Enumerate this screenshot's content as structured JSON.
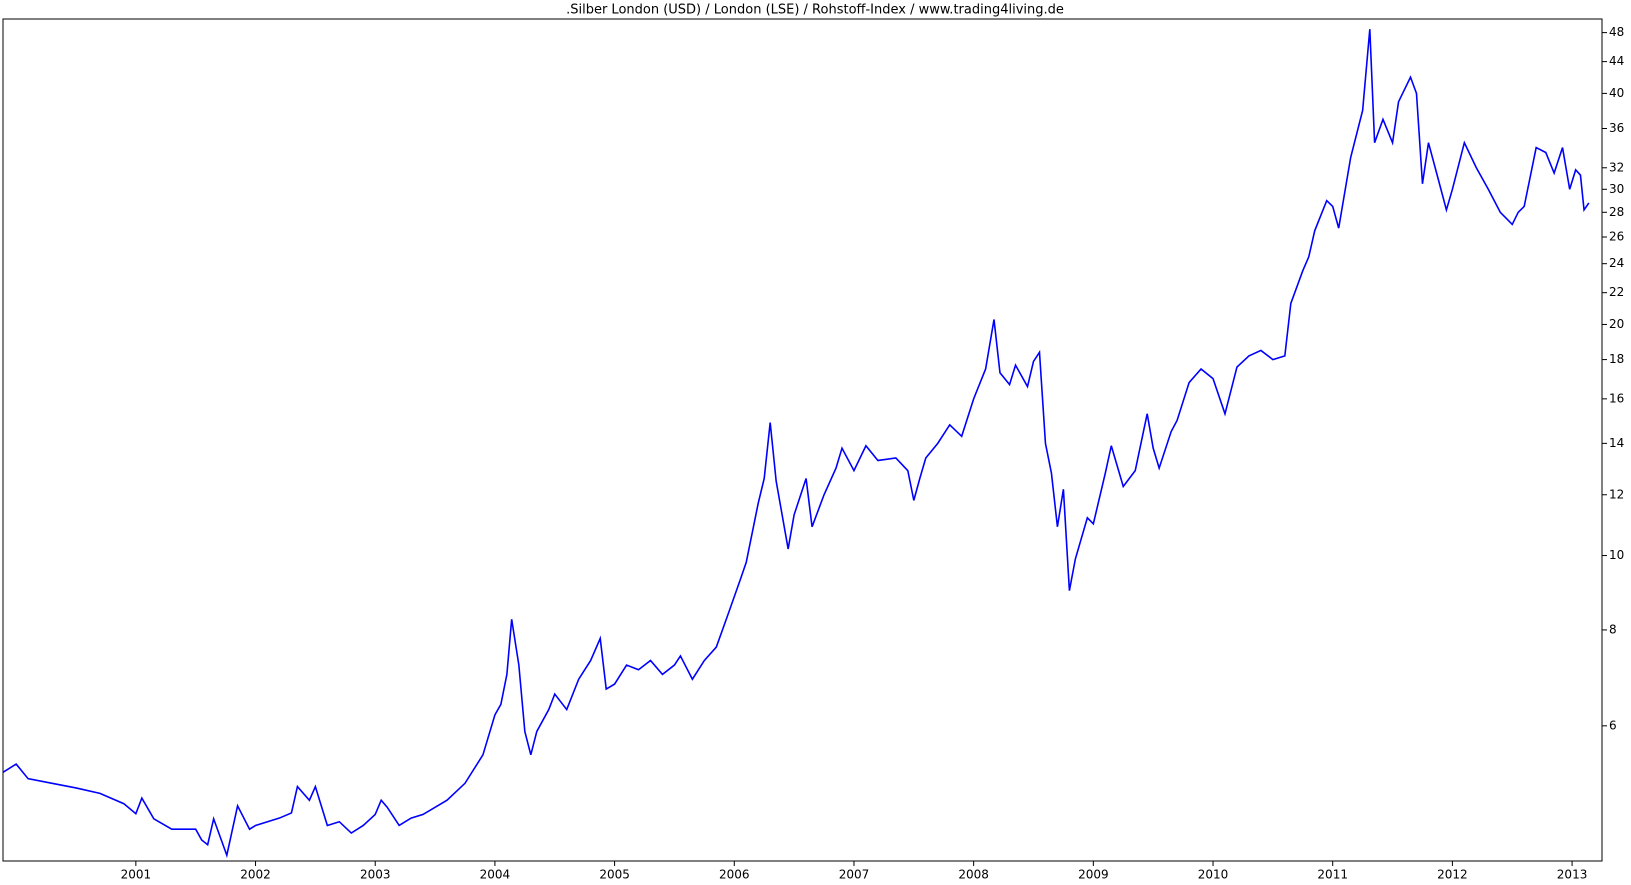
{
  "chart_data": {
    "type": "line",
    "title": ".Silber London (USD) / London (LSE) / Rohstoff-Index / www.trading4living.de",
    "x": [
      1999.89,
      2000.0,
      2000.1,
      2000.3,
      2000.5,
      2000.7,
      2000.9,
      2001.0,
      2001.05,
      2001.15,
      2001.3,
      2001.5,
      2001.55,
      2001.6,
      2001.65,
      2001.76,
      2001.85,
      2001.95,
      2002.0,
      2002.1,
      2002.2,
      2002.3,
      2002.35,
      2002.45,
      2002.5,
      2002.6,
      2002.7,
      2002.8,
      2002.9,
      2003.0,
      2003.05,
      2003.1,
      2003.2,
      2003.3,
      2003.4,
      2003.6,
      2003.75,
      2003.9,
      2004.0,
      2004.05,
      2004.1,
      2004.14,
      2004.2,
      2004.25,
      2004.3,
      2004.35,
      2004.45,
      2004.5,
      2004.6,
      2004.7,
      2004.8,
      2004.88,
      2004.93,
      2005.0,
      2005.1,
      2005.2,
      2005.3,
      2005.4,
      2005.5,
      2005.55,
      2005.65,
      2005.75,
      2005.85,
      2005.95,
      2006.05,
      2006.1,
      2006.2,
      2006.25,
      2006.3,
      2006.35,
      2006.45,
      2006.5,
      2006.6,
      2006.65,
      2006.75,
      2006.85,
      2006.9,
      2007.0,
      2007.1,
      2007.2,
      2007.35,
      2007.45,
      2007.5,
      2007.55,
      2007.6,
      2007.7,
      2007.8,
      2007.9,
      2008.0,
      2008.1,
      2008.17,
      2008.22,
      2008.3,
      2008.35,
      2008.45,
      2008.5,
      2008.55,
      2008.6,
      2008.65,
      2008.7,
      2008.75,
      2008.8,
      2008.85,
      2008.95,
      2009.0,
      2009.1,
      2009.15,
      2009.25,
      2009.35,
      2009.45,
      2009.5,
      2009.55,
      2009.65,
      2009.7,
      2009.8,
      2009.9,
      2010.0,
      2010.1,
      2010.2,
      2010.3,
      2010.4,
      2010.5,
      2010.6,
      2010.65,
      2010.75,
      2010.8,
      2010.85,
      2010.95,
      2011.0,
      2011.05,
      2011.15,
      2011.25,
      2011.31,
      2011.35,
      2011.42,
      2011.5,
      2011.55,
      2011.65,
      2011.7,
      2011.75,
      2011.8,
      2011.88,
      2011.95,
      2012.0,
      2012.1,
      2012.2,
      2012.3,
      2012.4,
      2012.45,
      2012.5,
      2012.55,
      2012.6,
      2012.7,
      2012.78,
      2012.85,
      2012.92,
      2012.98,
      2013.03,
      2013.07,
      2013.1,
      2013.14
    ],
    "values": [
      5.22,
      5.35,
      5.12,
      5.05,
      4.98,
      4.9,
      4.75,
      4.61,
      4.83,
      4.54,
      4.4,
      4.4,
      4.26,
      4.2,
      4.54,
      4.07,
      4.72,
      4.4,
      4.45,
      4.5,
      4.55,
      4.62,
      5.0,
      4.8,
      5.0,
      4.45,
      4.5,
      4.35,
      4.45,
      4.6,
      4.8,
      4.7,
      4.45,
      4.55,
      4.6,
      4.8,
      5.05,
      5.5,
      6.2,
      6.4,
      7.0,
      8.26,
      7.2,
      5.9,
      5.5,
      5.9,
      6.3,
      6.6,
      6.3,
      6.9,
      7.3,
      7.8,
      6.7,
      6.8,
      7.2,
      7.1,
      7.3,
      7.0,
      7.2,
      7.4,
      6.9,
      7.3,
      7.6,
      8.4,
      9.3,
      9.8,
      11.7,
      12.6,
      14.9,
      12.5,
      10.2,
      11.3,
      12.6,
      10.9,
      12.0,
      13.0,
      13.8,
      12.9,
      13.9,
      13.3,
      13.4,
      12.9,
      11.8,
      12.6,
      13.4,
      14.0,
      14.8,
      14.3,
      16.0,
      17.5,
      20.3,
      17.3,
      16.7,
      17.7,
      16.6,
      17.9,
      18.4,
      14.0,
      12.8,
      10.9,
      12.2,
      9.0,
      9.9,
      11.2,
      11.0,
      12.8,
      13.9,
      12.3,
      12.9,
      15.3,
      13.8,
      13.0,
      14.5,
      15.0,
      16.8,
      17.5,
      17.0,
      15.3,
      17.6,
      18.2,
      18.5,
      18.0,
      18.2,
      21.3,
      23.5,
      24.5,
      26.5,
      29.0,
      28.5,
      26.7,
      33.0,
      38.0,
      48.5,
      34.5,
      37.0,
      34.5,
      39.0,
      42.0,
      40.0,
      30.5,
      34.5,
      31.0,
      28.2,
      30.0,
      34.5,
      32.0,
      30.0,
      28.0,
      27.5,
      27.0,
      28.0,
      28.5,
      34.0,
      33.5,
      31.5,
      34.0,
      30.0,
      31.8,
      31.3,
      28.2,
      28.8
    ],
    "color": "#0000ff",
    "xlim": [
      1999.89,
      2013.25
    ],
    "xticks": [
      2001,
      2002,
      2003,
      2004,
      2005,
      2006,
      2007,
      2008,
      2009,
      2010,
      2011,
      2012,
      2013
    ],
    "ylim": [
      4.0,
      50.0
    ],
    "yticks": [
      6,
      8,
      10,
      12,
      14,
      16,
      18,
      20,
      22,
      24,
      26,
      28,
      30,
      32,
      36,
      40,
      44,
      48
    ],
    "log_y": true
  }
}
